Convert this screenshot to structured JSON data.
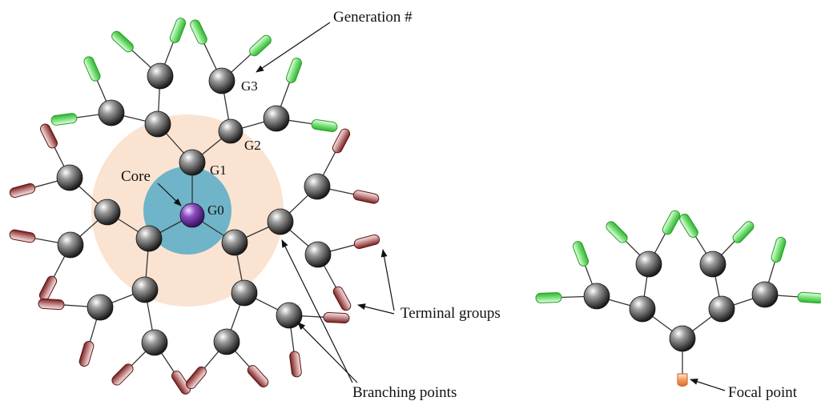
{
  "labels": {
    "generation": "Generation #",
    "core": "Core",
    "g0": "G0",
    "g1": "G1",
    "g2": "G2",
    "g3": "G3",
    "terminal_groups": "Terminal groups",
    "branching_points": "Branching points",
    "focal_point": "Focal point"
  },
  "colors": {
    "core_zone": "#fbe3d2",
    "g1_zone": "#6fb4c8",
    "branch_ball": "#6a6a6a",
    "core_ball": "#7b3fa0",
    "terminal_green": "#5ee05e",
    "terminal_red": "#8e2a2a",
    "focal": "#f2985e"
  }
}
